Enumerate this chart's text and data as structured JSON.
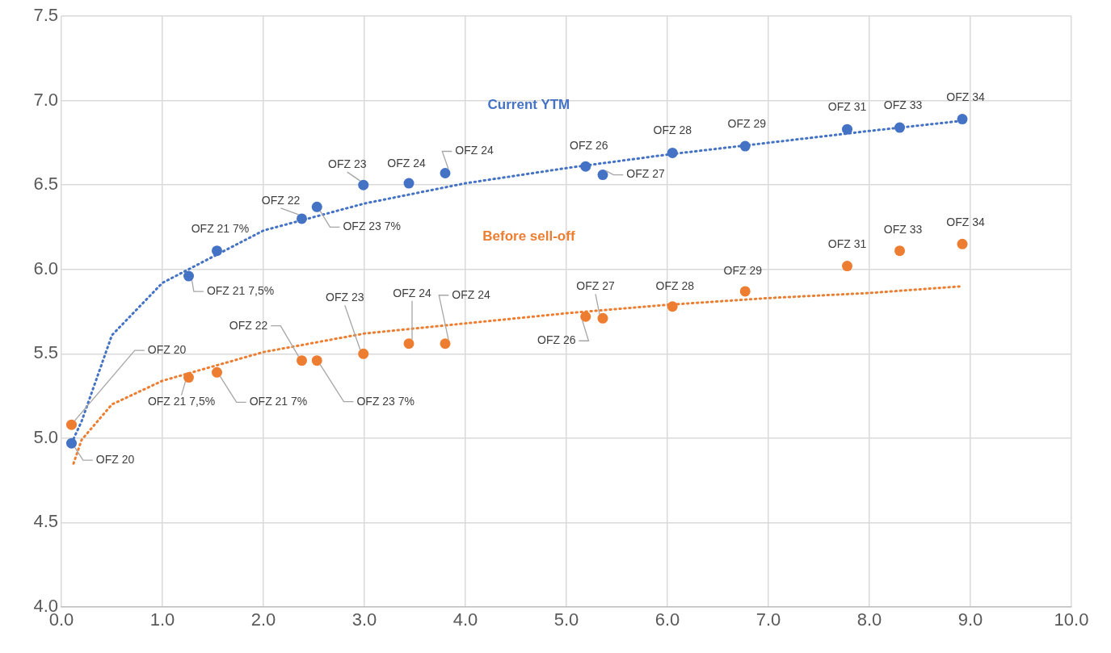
{
  "chart_data": {
    "type": "scatter",
    "xlim": [
      0,
      10
    ],
    "xticks": [
      {
        "value": 0,
        "label": "0.0"
      },
      {
        "value": 1,
        "label": "1.0"
      },
      {
        "value": 2,
        "label": "2.0"
      },
      {
        "value": 3,
        "label": "3.0"
      },
      {
        "value": 4,
        "label": "4.0"
      },
      {
        "value": 5,
        "label": "5.0"
      },
      {
        "value": 6,
        "label": "6.0"
      },
      {
        "value": 7,
        "label": "7.0"
      },
      {
        "value": 8,
        "label": "8.0"
      },
      {
        "value": 9,
        "label": "9.0"
      },
      {
        "value": 10,
        "label": "10.0"
      }
    ],
    "ylim": [
      4,
      7.5
    ],
    "yticks": [
      {
        "value": 4,
        "label": "4.0"
      },
      {
        "value": 4.5,
        "label": "4.5"
      },
      {
        "value": 5,
        "label": "5.0"
      },
      {
        "value": 5.5,
        "label": "5.5"
      },
      {
        "value": 6,
        "label": "6.0"
      },
      {
        "value": 6.5,
        "label": "6.5"
      },
      {
        "value": 7,
        "label": "7.0"
      },
      {
        "value": 7.5,
        "label": "7.5"
      }
    ],
    "grid": true,
    "legend": false,
    "marker": "circle",
    "series": [
      {
        "name": "Current YTM",
        "color": "#4472c4",
        "x": [
          0.1,
          1.26,
          1.54,
          2.38,
          2.53,
          2.99,
          3.44,
          3.8,
          5.19,
          5.36,
          6.05,
          6.77,
          7.78,
          8.3,
          8.92
        ],
        "values": [
          4.97,
          5.96,
          6.11,
          6.3,
          6.37,
          6.5,
          6.51,
          6.57,
          6.61,
          6.56,
          6.69,
          6.73,
          6.83,
          6.84,
          6.89
        ]
      },
      {
        "name": "Before sell-off",
        "color": "#ed7d31",
        "x": [
          0.1,
          1.26,
          1.54,
          2.38,
          2.53,
          2.99,
          3.44,
          3.8,
          5.19,
          5.36,
          6.05,
          6.77,
          7.78,
          8.3,
          8.92
        ],
        "values": [
          5.08,
          5.36,
          5.39,
          5.46,
          5.46,
          5.5,
          5.56,
          5.56,
          5.72,
          5.71,
          5.78,
          5.87,
          6.02,
          6.11,
          6.15
        ]
      },
      {
        "type": "line",
        "color": "#4472c4",
        "line_style": "dotted",
        "marker": "none",
        "x": [
          0.1,
          0.2,
          0.5,
          1,
          2,
          3,
          4,
          5,
          6,
          7,
          8,
          8.92
        ],
        "values": [
          4.97,
          5.1,
          5.61,
          5.92,
          6.23,
          6.39,
          6.51,
          6.6,
          6.68,
          6.75,
          6.82,
          6.88
        ]
      },
      {
        "type": "line",
        "color": "#ed7d31",
        "line_style": "dotted",
        "marker": "none",
        "x": [
          0.12,
          0.2,
          0.5,
          1,
          2,
          3,
          4,
          5,
          6,
          7,
          8,
          8.92
        ],
        "values": [
          4.85,
          4.99,
          5.2,
          5.34,
          5.51,
          5.62,
          5.68,
          5.74,
          5.79,
          5.83,
          5.86,
          5.9
        ]
      }
    ],
    "annotations": [
      {
        "text": "OFZ 20",
        "x": 0.1,
        "y": 4.97
      },
      {
        "text": "OFZ 21 7,5%",
        "x": 1.26,
        "y": 5.96
      },
      {
        "text": "OFZ 21 7%",
        "x": 1.54,
        "y": 6.11
      },
      {
        "text": "OFZ 22",
        "x": 2.38,
        "y": 6.3
      },
      {
        "text": "OFZ 23 7%",
        "x": 2.53,
        "y": 6.37
      },
      {
        "text": "OFZ 23",
        "x": 2.99,
        "y": 6.5
      },
      {
        "text": "OFZ 24",
        "x": 3.44,
        "y": 6.51
      },
      {
        "text": "OFZ 24",
        "x": 3.8,
        "y": 6.57
      },
      {
        "text": "OFZ 26",
        "x": 5.19,
        "y": 6.61
      },
      {
        "text": "OFZ 27",
        "x": 5.36,
        "y": 6.56
      },
      {
        "text": "OFZ 28",
        "x": 6.05,
        "y": 6.69
      },
      {
        "text": "OFZ 29",
        "x": 6.77,
        "y": 6.73
      },
      {
        "text": "OFZ 31",
        "x": 7.78,
        "y": 6.83
      },
      {
        "text": "OFZ 33",
        "x": 8.3,
        "y": 6.84
      },
      {
        "text": "OFZ 34",
        "x": 8.92,
        "y": 6.89
      },
      {
        "text": "OFZ 20",
        "x": 0.1,
        "y": 5.08
      },
      {
        "text": "OFZ 21 7,5%",
        "x": 1.26,
        "y": 5.36
      },
      {
        "text": "OFZ 21 7%",
        "x": 1.54,
        "y": 5.39
      },
      {
        "text": "OFZ 22",
        "x": 2.38,
        "y": 5.46
      },
      {
        "text": "OFZ 23 7%",
        "x": 2.53,
        "y": 5.46
      },
      {
        "text": "OFZ 23",
        "x": 2.99,
        "y": 5.5
      },
      {
        "text": "OFZ 24",
        "x": 3.44,
        "y": 5.56
      },
      {
        "text": "OFZ 24",
        "x": 3.8,
        "y": 5.56
      },
      {
        "text": "OFZ 26",
        "x": 5.19,
        "y": 5.72
      },
      {
        "text": "OFZ 27",
        "x": 5.36,
        "y": 5.71
      },
      {
        "text": "OFZ 28",
        "x": 6.05,
        "y": 5.78
      },
      {
        "text": "OFZ 29",
        "x": 6.77,
        "y": 5.87
      },
      {
        "text": "OFZ 31",
        "x": 7.78,
        "y": 6.02
      },
      {
        "text": "OFZ 33",
        "x": 8.3,
        "y": 6.11
      },
      {
        "text": "OFZ 34",
        "x": 8.92,
        "y": 6.15
      }
    ]
  }
}
